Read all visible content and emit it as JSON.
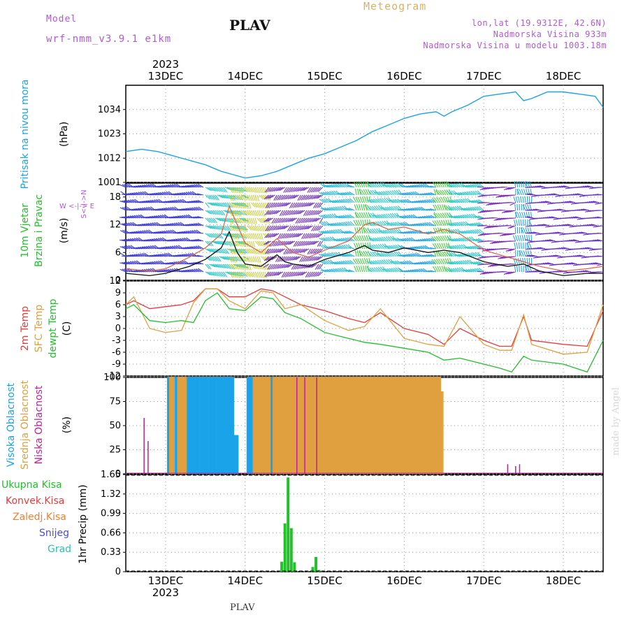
{
  "header": {
    "model_label": "Model",
    "model_name": "wrf-nmm_v3.9.1  e1km",
    "station": "PLAV",
    "product": "Meteogram",
    "lonlat": "lon,lat (19.9312E, 42.6N)",
    "altitude": "Nadmorska Visina 933m",
    "model_altitude": "Nadmorska Visina u modelu 1003.18m"
  },
  "footer": {
    "station": "PLAV",
    "credit": "made by Angel"
  },
  "time_axis": {
    "year": "2023",
    "day_labels": [
      "13DEC",
      "14DEC",
      "15DEC",
      "16DEC",
      "17DEC",
      "18DEC"
    ],
    "day_positions": [
      13,
      14,
      15,
      16,
      17,
      18
    ],
    "range": [
      12.5,
      18.5
    ]
  },
  "colors": {
    "pressure": "#1aa3e8",
    "wind_speed": "#111111",
    "wind_gust": "#e06040",
    "temp2m": "#e83a3a",
    "sfc_temp": "#e0a040",
    "dewpoint": "#22c02a",
    "cloud_high": "#1aa3e8",
    "cloud_mid": "#e0a040",
    "cloud_low": "#c0209a",
    "rain_total": "#22c02a",
    "rain_convective": "#e83a3a",
    "rain_frozen": "#f08030",
    "snow": "#4a4ae0",
    "graupel": "#2ac0b0"
  },
  "panels": {
    "pressure": {
      "ylabel_main": "Pritisak na nivou mora",
      "ylabel_unit": "(hPa)"
    },
    "wind": {
      "ylabel_main": "10m Vjetar",
      "ylabel_sub": "Brzina i Pravac",
      "ylabel_unit": "(m/s)",
      "compass": "W  <-|->  E",
      "compass_vert": "S<-|->N"
    },
    "temp": {
      "ylabel_1": "2m Temp",
      "ylabel_2": "SFC Temp",
      "ylabel_3": "dewpt Temp",
      "ylabel_unit": "(C)"
    },
    "cloud": {
      "ylabel_1": "Visoka Oblacnost",
      "ylabel_2": "Srednja Oblacnost",
      "ylabel_3": "Niska Oblacnost",
      "ylabel_unit": "(%)"
    },
    "precip": {
      "ylabel_main": "1hr Precip (mm)",
      "legend": [
        "Ukupna Kisa",
        "Konvek.Kisa",
        "Zaledj.Kisa",
        "Snijeg",
        "Grad"
      ]
    }
  },
  "chart_data": [
    {
      "type": "line",
      "title": "",
      "ylabel": "Pritisak na nivou mora (hPa)",
      "ylim": [
        1001,
        1045
      ],
      "yticks": [
        1001,
        1012,
        1023,
        1034
      ],
      "grid": true,
      "series": [
        {
          "name": "",
          "x": [
            12.5,
            12.7,
            12.9,
            13.1,
            13.3,
            13.5,
            13.7,
            13.9,
            14.0,
            14.2,
            14.4,
            14.6,
            14.8,
            15.0,
            15.2,
            15.4,
            15.6,
            15.8,
            16.0,
            16.2,
            16.4,
            16.5,
            16.6,
            16.8,
            17.0,
            17.2,
            17.4,
            17.5,
            17.6,
            17.8,
            18.0,
            18.2,
            18.4,
            18.5
          ],
          "values": [
            1015,
            1016,
            1015,
            1013,
            1011,
            1009,
            1006,
            1004,
            1003,
            1004,
            1006,
            1009,
            1012,
            1014,
            1017,
            1020,
            1024,
            1027,
            1030,
            1032,
            1033,
            1031,
            1033,
            1036,
            1040,
            1041,
            1042,
            1038,
            1039,
            1042,
            1042,
            1041,
            1040,
            1035
          ]
        }
      ]
    },
    {
      "type": "line",
      "title": "",
      "ylabel": "10m Vjetar Brzina i Pravac (m/s)",
      "ylim": [
        0,
        21
      ],
      "yticks": [
        0,
        6,
        12,
        18
      ],
      "grid": true,
      "series": [
        {
          "name": "",
          "x": [
            12.5,
            12.8,
            13.0,
            13.3,
            13.5,
            13.7,
            13.8,
            13.9,
            14.0,
            14.2,
            14.4,
            14.5,
            14.6,
            14.8,
            15.0,
            15.3,
            15.5,
            15.6,
            15.8,
            16.0,
            16.3,
            16.5,
            16.7,
            17.0,
            17.3,
            17.5,
            17.7,
            18.0,
            18.3,
            18.5
          ],
          "values": [
            1.5,
            1.0,
            1.5,
            3.0,
            4.5,
            7.0,
            10.5,
            6.0,
            3.5,
            3.0,
            5.5,
            4.0,
            3.5,
            3.0,
            4.5,
            6.0,
            7.5,
            6.5,
            6.0,
            7.0,
            6.0,
            6.5,
            6.0,
            4.0,
            3.0,
            3.5,
            2.0,
            1.0,
            1.5,
            1.5
          ]
        },
        {
          "name": "",
          "x": [
            12.5,
            12.8,
            13.0,
            13.3,
            13.5,
            13.7,
            13.8,
            13.9,
            14.0,
            14.2,
            14.4,
            14.5,
            14.6,
            14.8,
            15.0,
            15.3,
            15.5,
            15.6,
            15.8,
            16.0,
            16.3,
            16.5,
            16.7,
            17.0,
            17.3,
            17.5,
            17.7,
            18.0,
            18.3,
            18.5
          ],
          "values": [
            2.5,
            2.0,
            2.5,
            5.0,
            7.0,
            10.0,
            16.0,
            12.0,
            8.0,
            6.0,
            9.0,
            7.5,
            6.0,
            5.0,
            6.5,
            8.5,
            12.0,
            12.5,
            11.0,
            11.5,
            10.0,
            11.0,
            10.0,
            6.5,
            5.0,
            4.0,
            3.0,
            2.0,
            2.5,
            3.0
          ]
        }
      ]
    },
    {
      "type": "line",
      "title": "",
      "ylabel": "2m Temp / SFC Temp / dewpt Temp (C)",
      "ylim": [
        -12,
        12
      ],
      "yticks": [
        -12,
        -9,
        -6,
        -3,
        0,
        3,
        6,
        9,
        12
      ],
      "grid": true,
      "series": [
        {
          "name": "2m Temp",
          "x": [
            12.5,
            12.6,
            12.8,
            13.0,
            13.2,
            13.35,
            13.5,
            13.65,
            13.8,
            14.0,
            14.2,
            14.35,
            14.5,
            14.7,
            15.0,
            15.3,
            15.5,
            15.7,
            16.0,
            16.3,
            16.5,
            16.7,
            17.0,
            17.2,
            17.35,
            17.5,
            17.6,
            18.0,
            18.3,
            18.5
          ],
          "values": [
            6,
            7,
            5,
            5.5,
            6,
            7,
            10,
            10,
            8,
            8,
            10,
            9.5,
            8,
            6,
            4.5,
            2.5,
            1.5,
            4,
            0,
            -1.5,
            -4,
            0,
            -3,
            -4.5,
            -4.5,
            3,
            -3,
            -4,
            -4.5,
            4.5
          ]
        },
        {
          "name": "SFC Temp",
          "x": [
            12.5,
            12.6,
            12.8,
            13.0,
            13.2,
            13.35,
            13.5,
            13.65,
            13.8,
            14.0,
            14.2,
            14.35,
            14.5,
            14.7,
            15.0,
            15.3,
            15.5,
            15.7,
            16.0,
            16.3,
            16.5,
            16.7,
            17.0,
            17.2,
            17.35,
            17.5,
            17.6,
            18.0,
            18.3,
            18.5
          ],
          "values": [
            6,
            8,
            0,
            -1,
            -0.5,
            6.5,
            10,
            10,
            7,
            5,
            9.5,
            9,
            5,
            6,
            2,
            -0.5,
            0.5,
            5,
            -2.5,
            -4,
            -4.5,
            3,
            -4,
            -5.5,
            -5.5,
            3.5,
            -4,
            -6.5,
            -6,
            6
          ]
        },
        {
          "name": "dewpt Temp",
          "x": [
            12.5,
            12.6,
            12.8,
            13.0,
            13.2,
            13.35,
            13.5,
            13.65,
            13.8,
            14.0,
            14.2,
            14.35,
            14.5,
            14.7,
            15.0,
            15.3,
            15.5,
            15.7,
            16.0,
            16.3,
            16.5,
            16.7,
            17.0,
            17.2,
            17.35,
            17.5,
            17.6,
            18.0,
            18.3,
            18.5
          ],
          "values": [
            5,
            6,
            2,
            1.5,
            2,
            1.5,
            7,
            9,
            5,
            4.5,
            8,
            7.5,
            4,
            2.5,
            -1,
            -2.5,
            -3.5,
            -4,
            -5,
            -6,
            -8,
            -7.5,
            -9,
            -10,
            -11,
            -7,
            -8,
            -9,
            -11,
            -3
          ]
        }
      ]
    },
    {
      "type": "bar",
      "title": "",
      "ylabel": "Visoka / Srednja / Niska Oblacnost (%)",
      "ylim": [
        0,
        100
      ],
      "yticks": [
        0,
        25,
        50,
        75,
        100
      ],
      "grid": true,
      "series": [
        {
          "name": "Visoka Oblacnost",
          "ranges": [
            [
              13.02,
              13.08,
              100
            ],
            [
              13.12,
              13.82,
              100
            ],
            [
              13.83,
              13.88,
              40
            ],
            [
              14.02,
              15.3,
              100
            ],
            [
              15.3,
              15.32,
              85
            ]
          ]
        },
        {
          "name": "Srednja Oblacnost",
          "ranges": [
            [
              13.05,
              13.1,
              100
            ],
            [
              13.15,
              13.25,
              100
            ],
            [
              14.1,
              14.3,
              100
            ],
            [
              14.35,
              16.45,
              100
            ],
            [
              16.45,
              16.48,
              85
            ]
          ]
        },
        {
          "name": "Niska Oblacnost",
          "spikes": [
            [
              12.73,
              58
            ],
            [
              12.78,
              34
            ],
            [
              14.65,
              100
            ],
            [
              14.75,
              100
            ],
            [
              14.9,
              100
            ],
            [
              17.3,
              10
            ],
            [
              17.4,
              8
            ],
            [
              17.45,
              10
            ]
          ]
        }
      ]
    },
    {
      "type": "bar",
      "title": "",
      "ylabel": "1hr Precip (mm)",
      "ylim": [
        0,
        1.65
      ],
      "yticks": [
        0,
        0.33,
        0.66,
        0.99,
        1.32,
        1.65
      ],
      "grid": true,
      "series": [
        {
          "name": "Ukupna Kisa",
          "x": [
            14.46,
            14.5,
            14.54,
            14.58,
            14.62,
            14.85,
            14.89,
            14.93
          ],
          "values": [
            0.17,
            0.82,
            1.6,
            0.74,
            0.16,
            0.08,
            0.25,
            0.03
          ]
        }
      ]
    }
  ]
}
